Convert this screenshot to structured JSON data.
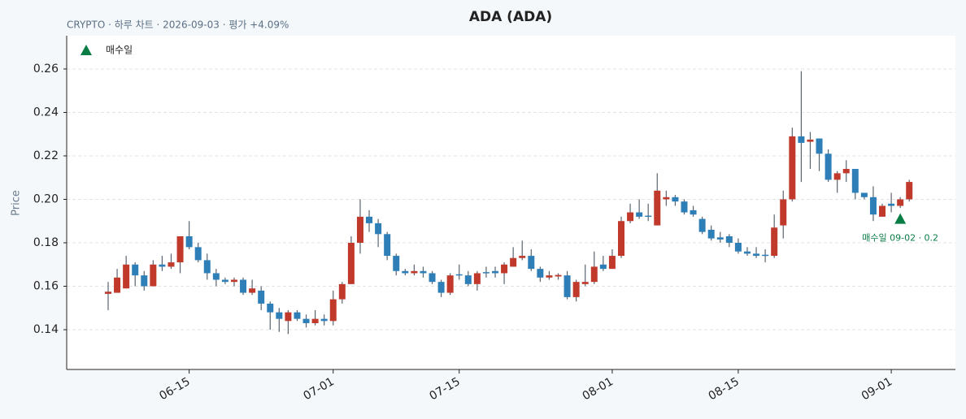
{
  "chart_data": {
    "type": "candlestick",
    "title": "ADA (ADA)",
    "subtitle": "CRYPTO · 하루 차트 · 2026-09-03 · 평가 +4.09%",
    "y_label": "Price",
    "x": [
      "06-06",
      "06-07",
      "06-08",
      "06-09",
      "06-10",
      "06-11",
      "06-12",
      "06-13",
      "06-14",
      "06-15",
      "06-16",
      "06-17",
      "06-18",
      "06-19",
      "06-20",
      "06-21",
      "06-22",
      "06-23",
      "06-24",
      "06-25",
      "06-26",
      "06-27",
      "06-28",
      "06-29",
      "06-30",
      "07-01",
      "07-02",
      "07-03",
      "07-04",
      "07-05",
      "07-06",
      "07-07",
      "07-08",
      "07-09",
      "07-10",
      "07-11",
      "07-12",
      "07-13",
      "07-14",
      "07-15",
      "07-16",
      "07-17",
      "07-18",
      "07-19",
      "07-20",
      "07-21",
      "07-22",
      "07-23",
      "07-24",
      "07-25",
      "07-26",
      "07-27",
      "07-28",
      "07-29",
      "07-30",
      "07-31",
      "08-01",
      "08-02",
      "08-03",
      "08-04",
      "08-05",
      "08-06",
      "08-07",
      "08-08",
      "08-09",
      "08-10",
      "08-11",
      "08-12",
      "08-13",
      "08-14",
      "08-15",
      "08-16",
      "08-17",
      "08-18",
      "08-19",
      "08-20",
      "08-21",
      "08-22",
      "08-23",
      "08-24",
      "08-25",
      "08-26",
      "08-27",
      "08-28",
      "08-29",
      "08-30",
      "08-31",
      "09-01",
      "09-02",
      "09-03"
    ],
    "open": [
      0.1565,
      0.157,
      0.159,
      0.17,
      0.165,
      0.16,
      0.17,
      0.169,
      0.171,
      0.183,
      0.178,
      0.172,
      0.166,
      0.163,
      0.162,
      0.163,
      0.157,
      0.158,
      0.152,
      0.148,
      0.144,
      0.148,
      0.145,
      0.143,
      0.145,
      0.144,
      0.154,
      0.161,
      0.18,
      0.192,
      0.189,
      0.184,
      0.174,
      0.167,
      0.166,
      0.167,
      0.166,
      0.162,
      0.157,
      0.1655,
      0.165,
      0.161,
      0.1665,
      0.167,
      0.166,
      0.169,
      0.173,
      0.174,
      0.168,
      0.164,
      0.1645,
      0.165,
      0.155,
      0.161,
      0.162,
      0.17,
      0.168,
      0.174,
      0.19,
      0.194,
      0.1925,
      0.188,
      0.2,
      0.201,
      0.199,
      0.195,
      0.191,
      0.186,
      0.1825,
      0.183,
      0.18,
      0.176,
      0.175,
      0.1745,
      0.174,
      0.188,
      0.2,
      0.229,
      0.2265,
      0.228,
      0.221,
      0.209,
      0.212,
      0.214,
      0.203,
      0.201,
      0.192,
      0.198,
      0.197,
      0.2
    ],
    "high": [
      0.162,
      0.168,
      0.174,
      0.171,
      0.167,
      0.172,
      0.174,
      0.175,
      0.183,
      0.19,
      0.18,
      0.175,
      0.168,
      0.164,
      0.164,
      0.164,
      0.163,
      0.16,
      0.153,
      0.15,
      0.149,
      0.149,
      0.147,
      0.149,
      0.147,
      0.158,
      0.162,
      0.183,
      0.2,
      0.195,
      0.191,
      0.185,
      0.175,
      0.168,
      0.17,
      0.169,
      0.167,
      0.163,
      0.166,
      0.17,
      0.167,
      0.167,
      0.169,
      0.169,
      0.171,
      0.178,
      0.181,
      0.177,
      0.169,
      0.167,
      0.166,
      0.167,
      0.163,
      0.17,
      0.176,
      0.174,
      0.177,
      0.192,
      0.198,
      0.2,
      0.198,
      0.212,
      0.204,
      0.202,
      0.2,
      0.197,
      0.192,
      0.188,
      0.185,
      0.184,
      0.182,
      0.178,
      0.178,
      0.177,
      0.193,
      0.204,
      0.233,
      0.259,
      0.231,
      0.228,
      0.223,
      0.213,
      0.218,
      0.214,
      0.203,
      0.206,
      0.198,
      0.203,
      0.201,
      0.209
    ],
    "low": [
      0.149,
      0.157,
      0.159,
      0.16,
      0.158,
      0.16,
      0.167,
      0.168,
      0.166,
      0.177,
      0.171,
      0.163,
      0.16,
      0.161,
      0.16,
      0.156,
      0.156,
      0.149,
      0.14,
      0.139,
      0.138,
      0.144,
      0.141,
      0.142,
      0.142,
      0.142,
      0.152,
      0.161,
      0.175,
      0.185,
      0.178,
      0.172,
      0.165,
      0.165,
      0.165,
      0.164,
      0.161,
      0.155,
      0.156,
      0.163,
      0.16,
      0.158,
      0.164,
      0.164,
      0.161,
      0.169,
      0.172,
      0.167,
      0.162,
      0.163,
      0.163,
      0.154,
      0.153,
      0.16,
      0.161,
      0.167,
      0.168,
      0.173,
      0.189,
      0.191,
      0.19,
      0.188,
      0.197,
      0.197,
      0.193,
      0.192,
      0.184,
      0.181,
      0.18,
      0.178,
      0.175,
      0.174,
      0.173,
      0.171,
      0.173,
      0.182,
      0.199,
      0.208,
      0.214,
      0.213,
      0.208,
      0.203,
      0.208,
      0.2,
      0.2,
      0.19,
      0.192,
      0.194,
      0.196,
      0.199
    ],
    "close": [
      0.1575,
      0.164,
      0.17,
      0.165,
      0.16,
      0.17,
      0.169,
      0.171,
      0.183,
      0.178,
      0.172,
      0.166,
      0.163,
      0.162,
      0.163,
      0.157,
      0.159,
      0.152,
      0.148,
      0.145,
      0.148,
      0.145,
      0.143,
      0.145,
      0.144,
      0.154,
      0.161,
      0.18,
      0.192,
      0.189,
      0.184,
      0.174,
      0.167,
      0.166,
      0.167,
      0.166,
      0.162,
      0.157,
      0.165,
      0.165,
      0.161,
      0.166,
      0.166,
      0.166,
      0.17,
      0.173,
      0.174,
      0.168,
      0.164,
      0.165,
      0.1652,
      0.155,
      0.162,
      0.162,
      0.169,
      0.168,
      0.174,
      0.19,
      0.194,
      0.192,
      0.192,
      0.204,
      0.201,
      0.199,
      0.194,
      0.193,
      0.185,
      0.182,
      0.1815,
      0.18,
      0.176,
      0.175,
      0.174,
      0.174,
      0.187,
      0.2,
      0.229,
      0.226,
      0.2275,
      0.221,
      0.209,
      0.212,
      0.214,
      0.203,
      0.201,
      0.193,
      0.197,
      0.197,
      0.2,
      0.208
    ],
    "up_color": "#c0392b",
    "down_color": "#2e7fb8",
    "wick_color": "#5a6470",
    "signal": {
      "name": "매수일",
      "x": "09-02",
      "value": 0.191,
      "color": "#0a7d45",
      "annotation": "매수일 09-02 · 0.2"
    },
    "xticks": [
      "06-15",
      "07-01",
      "07-15",
      "08-01",
      "08-15",
      "09-01"
    ],
    "ylim": [
      0.1217,
      0.2753
    ],
    "yticks": [
      0.14,
      0.16,
      0.18,
      {
        "value": 0.2,
        "label": "0.20"
      },
      0.22,
      0.24,
      0.26
    ],
    "grid": true,
    "legend": "upper left"
  }
}
